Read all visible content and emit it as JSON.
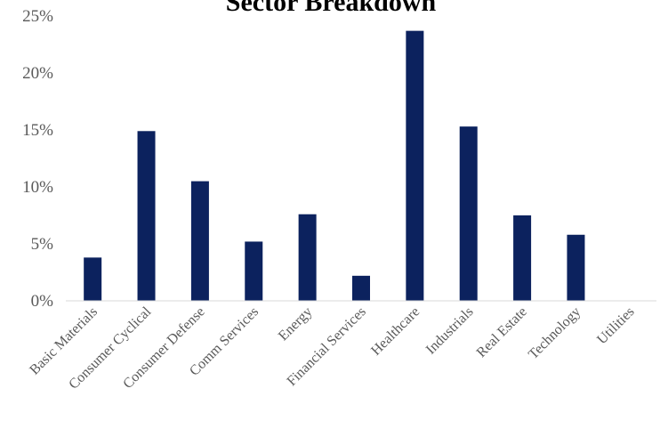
{
  "chart_data": {
    "type": "bar",
    "title": "Sector Breakdown",
    "xlabel": "",
    "ylabel": "",
    "categories": [
      "Basic Materials",
      "Consumer Cyclical",
      "Consumer Defense",
      "Comm Services",
      "Energy",
      "Financial Services",
      "Healthcare",
      "Industrials",
      "Real Estate",
      "Technology",
      "Utilities"
    ],
    "values": [
      3.8,
      14.9,
      10.5,
      5.2,
      7.6,
      2.2,
      23.7,
      15.3,
      7.5,
      5.8,
      0.0
    ],
    "ylim": [
      0,
      25
    ],
    "yticks": [
      "0%",
      "5%",
      "10%",
      "15%",
      "20%",
      "25%"
    ],
    "grid": false,
    "legend": "none",
    "colors": {
      "bar": "#0C225E",
      "axis": "#D9D9D9"
    }
  }
}
